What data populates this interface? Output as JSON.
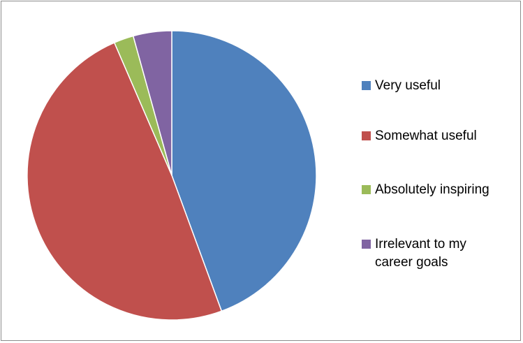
{
  "chart_data": {
    "type": "pie",
    "title": "",
    "legend_position": "right",
    "categories": [
      "Very useful",
      "Somewhat useful",
      "Absolutely inspiring",
      "Irrelevant to my\ncareer goals"
    ],
    "values": [
      44.4,
      49.1,
      2.2,
      4.3
    ],
    "colors": [
      "#4f81bd",
      "#c0504d",
      "#9bbb59",
      "#8064a2"
    ],
    "start_angle_deg": 0,
    "direction": "clockwise"
  }
}
